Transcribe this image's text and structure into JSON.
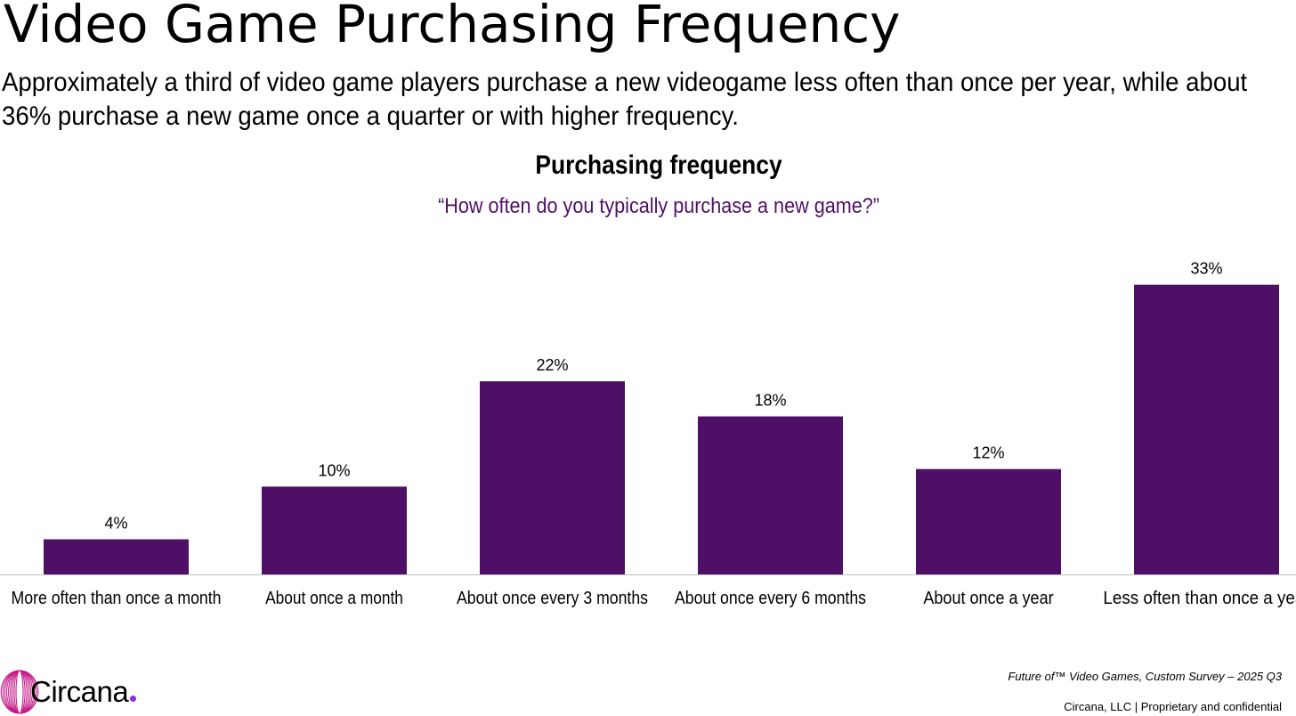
{
  "header": {
    "title": "Video Game Purchasing Frequency",
    "subtitle": "Approximately a third of video game players purchase a new videogame less often than once per year, while about 36% purchase a new game once a quarter or with higher frequency."
  },
  "chart_data": {
    "type": "bar",
    "title": "Purchasing frequency",
    "subtitle": "“How often do you typically purchase a new game?”",
    "categories": [
      "More often than once a month",
      "About once a month",
      "About once every 3 months",
      "About once every 6 months",
      "About once a year",
      "Less often than once a year"
    ],
    "values": [
      4,
      10,
      22,
      18,
      12,
      33
    ],
    "value_labels": [
      "4%",
      "10%",
      "22%",
      "18%",
      "12%",
      "33%"
    ],
    "unit": "%",
    "ylim": [
      0,
      35
    ],
    "grid": false,
    "legend": "none",
    "bar_color": "#4e1066",
    "axis_color": "#bfbfbf"
  },
  "colors": {
    "title_text": "#000000",
    "question_text": "#4e1066",
    "logo_ring": "#c51b8a",
    "logo_dot": "#8a2be2"
  },
  "footer": {
    "logo_text": "Circana",
    "source": "Future of™ Video Games, Custom Survey – 2025 Q3",
    "company": "Circana, LLC |  Proprietary and confidential"
  },
  "icons": {
    "logo": "circana-logo-icon"
  }
}
